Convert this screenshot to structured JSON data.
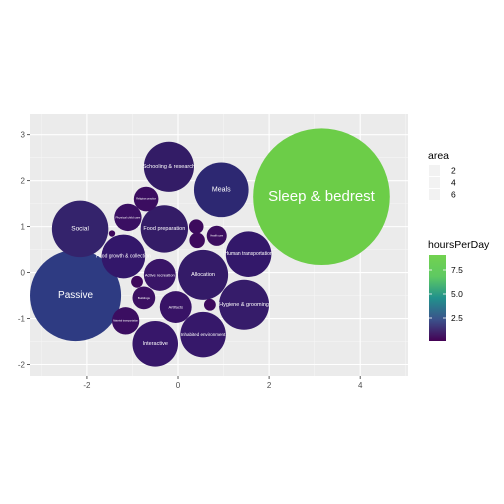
{
  "chart_data": {
    "type": "bubble",
    "title": "",
    "xlabel": "",
    "ylabel": "",
    "xlim": [
      -3.25,
      5.05
    ],
    "ylim": [
      -2.25,
      3.45
    ],
    "x_ticks": [
      -2,
      0,
      2,
      4
    ],
    "y_ticks": [
      -2,
      -1,
      0,
      1,
      2,
      3
    ],
    "x_tick_labels": [
      "-2",
      "0",
      "2",
      "4"
    ],
    "y_tick_labels": [
      "-2",
      "-1",
      "0",
      "1",
      "2",
      "3"
    ],
    "grid": true,
    "legend_placement": "right",
    "size_legend": {
      "title": "area",
      "labels": [
        "2",
        "4",
        "6"
      ]
    },
    "color_legend": {
      "title": "hoursPerDay",
      "labels": [
        "7.5",
        "5.0",
        "2.5"
      ],
      "colors": [
        "#440154",
        "#3b528b",
        "#21918c",
        "#5ec962",
        "#72d24f"
      ]
    },
    "bubbles": [
      {
        "label": "Sleep & bedrest",
        "x": 3.15,
        "y": 1.65,
        "r": 1.5,
        "color": "#6ccd48",
        "font": 15
      },
      {
        "label": "Passive",
        "x": -2.25,
        "y": -0.5,
        "r": 1.0,
        "color": "#2e3b82",
        "font": 10
      },
      {
        "label": "Meals",
        "x": 0.95,
        "y": 1.8,
        "r": 0.6,
        "color": "#2d2872",
        "font": 7
      },
      {
        "label": "Schooling & research",
        "x": -0.2,
        "y": 2.3,
        "r": 0.55,
        "color": "#331c66",
        "font": 5.5
      },
      {
        "label": "Social",
        "x": -2.15,
        "y": 0.95,
        "r": 0.62,
        "color": "#34236c",
        "font": 6.5
      },
      {
        "label": "Food preparation",
        "x": -0.3,
        "y": 0.95,
        "r": 0.52,
        "color": "#341c67",
        "font": 5.5
      },
      {
        "label": "Food growth & collection",
        "x": -1.2,
        "y": 0.35,
        "r": 0.48,
        "color": "#33176a",
        "font": 5
      },
      {
        "label": "Allocation",
        "x": 0.55,
        "y": -0.05,
        "r": 0.55,
        "color": "#341b68",
        "font": 5.5
      },
      {
        "label": "Human transportation",
        "x": 1.55,
        "y": 0.4,
        "r": 0.5,
        "color": "#33186a",
        "font": 5
      },
      {
        "label": "Hygiene & grooming",
        "x": 1.45,
        "y": -0.7,
        "r": 0.55,
        "color": "#361c6a",
        "font": 5.5
      },
      {
        "label": "Inhabited environment",
        "x": 0.55,
        "y": -1.35,
        "r": 0.5,
        "color": "#36186a",
        "font": 4.5
      },
      {
        "label": "Interactive",
        "x": -0.5,
        "y": -1.55,
        "r": 0.5,
        "color": "#37176a",
        "font": 5.5
      },
      {
        "label": "Artifacts",
        "x": -0.05,
        "y": -0.75,
        "r": 0.35,
        "color": "#381366",
        "font": 4
      },
      {
        "label": "Active recreation",
        "x": -0.4,
        "y": -0.05,
        "r": 0.35,
        "color": "#391567",
        "font": 4
      },
      {
        "label": "Physical child care",
        "x": -1.1,
        "y": 1.2,
        "r": 0.3,
        "color": "#3a0f62",
        "font": 3
      },
      {
        "label": "Religious practice",
        "x": -0.7,
        "y": 1.6,
        "r": 0.27,
        "color": "#3b0d60",
        "font": 2.5
      },
      {
        "label": "Health care",
        "x": 0.85,
        "y": 0.8,
        "r": 0.22,
        "color": "#3c0e60",
        "font": 2.5
      },
      {
        "label": "Buildings",
        "x": -0.75,
        "y": -0.55,
        "r": 0.25,
        "color": "#3b0f62",
        "font": 3
      },
      {
        "label": "Material transportation",
        "x": -1.15,
        "y": -1.05,
        "r": 0.3,
        "color": "#3b0e61",
        "font": 2.5
      },
      {
        "label": "",
        "x": 0.4,
        "y": 1.0,
        "r": 0.16,
        "color": "#3d0a5d",
        "font": 0
      },
      {
        "label": "",
        "x": 0.42,
        "y": 0.7,
        "r": 0.17,
        "color": "#3d0a5d",
        "font": 0
      },
      {
        "label": "",
        "x": 0.7,
        "y": -0.7,
        "r": 0.13,
        "color": "#3d0a5d",
        "font": 0
      },
      {
        "label": "",
        "x": -0.9,
        "y": -0.2,
        "r": 0.13,
        "color": "#3e085c",
        "font": 0
      },
      {
        "label": "",
        "x": -1.45,
        "y": 0.85,
        "r": 0.07,
        "color": "#3e085c",
        "font": 0
      }
    ]
  }
}
